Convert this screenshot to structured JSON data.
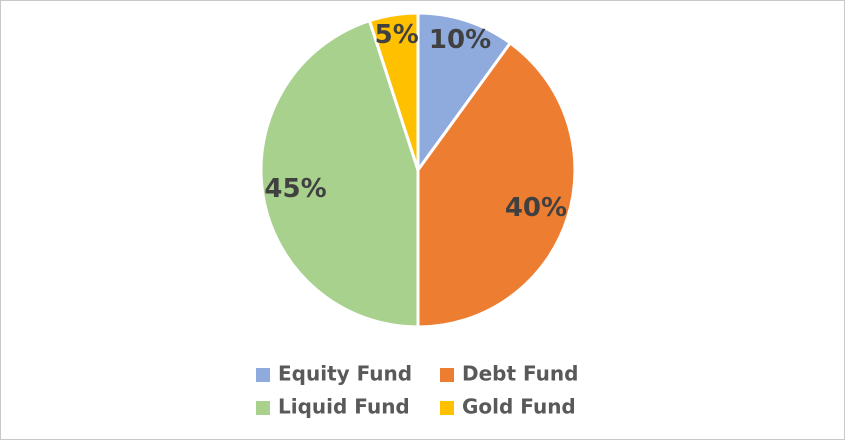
{
  "chart_data": {
    "type": "pie",
    "categories": [
      "Equity Fund",
      "Debt Fund",
      "Liquid Fund",
      "Gold Fund"
    ],
    "values": [
      10,
      40,
      45,
      5
    ],
    "value_labels": [
      "10%",
      "40%",
      "45%",
      "5%"
    ],
    "colors": [
      "#8faadc",
      "#ed7d31",
      "#a9d18e",
      "#ffc000"
    ]
  }
}
